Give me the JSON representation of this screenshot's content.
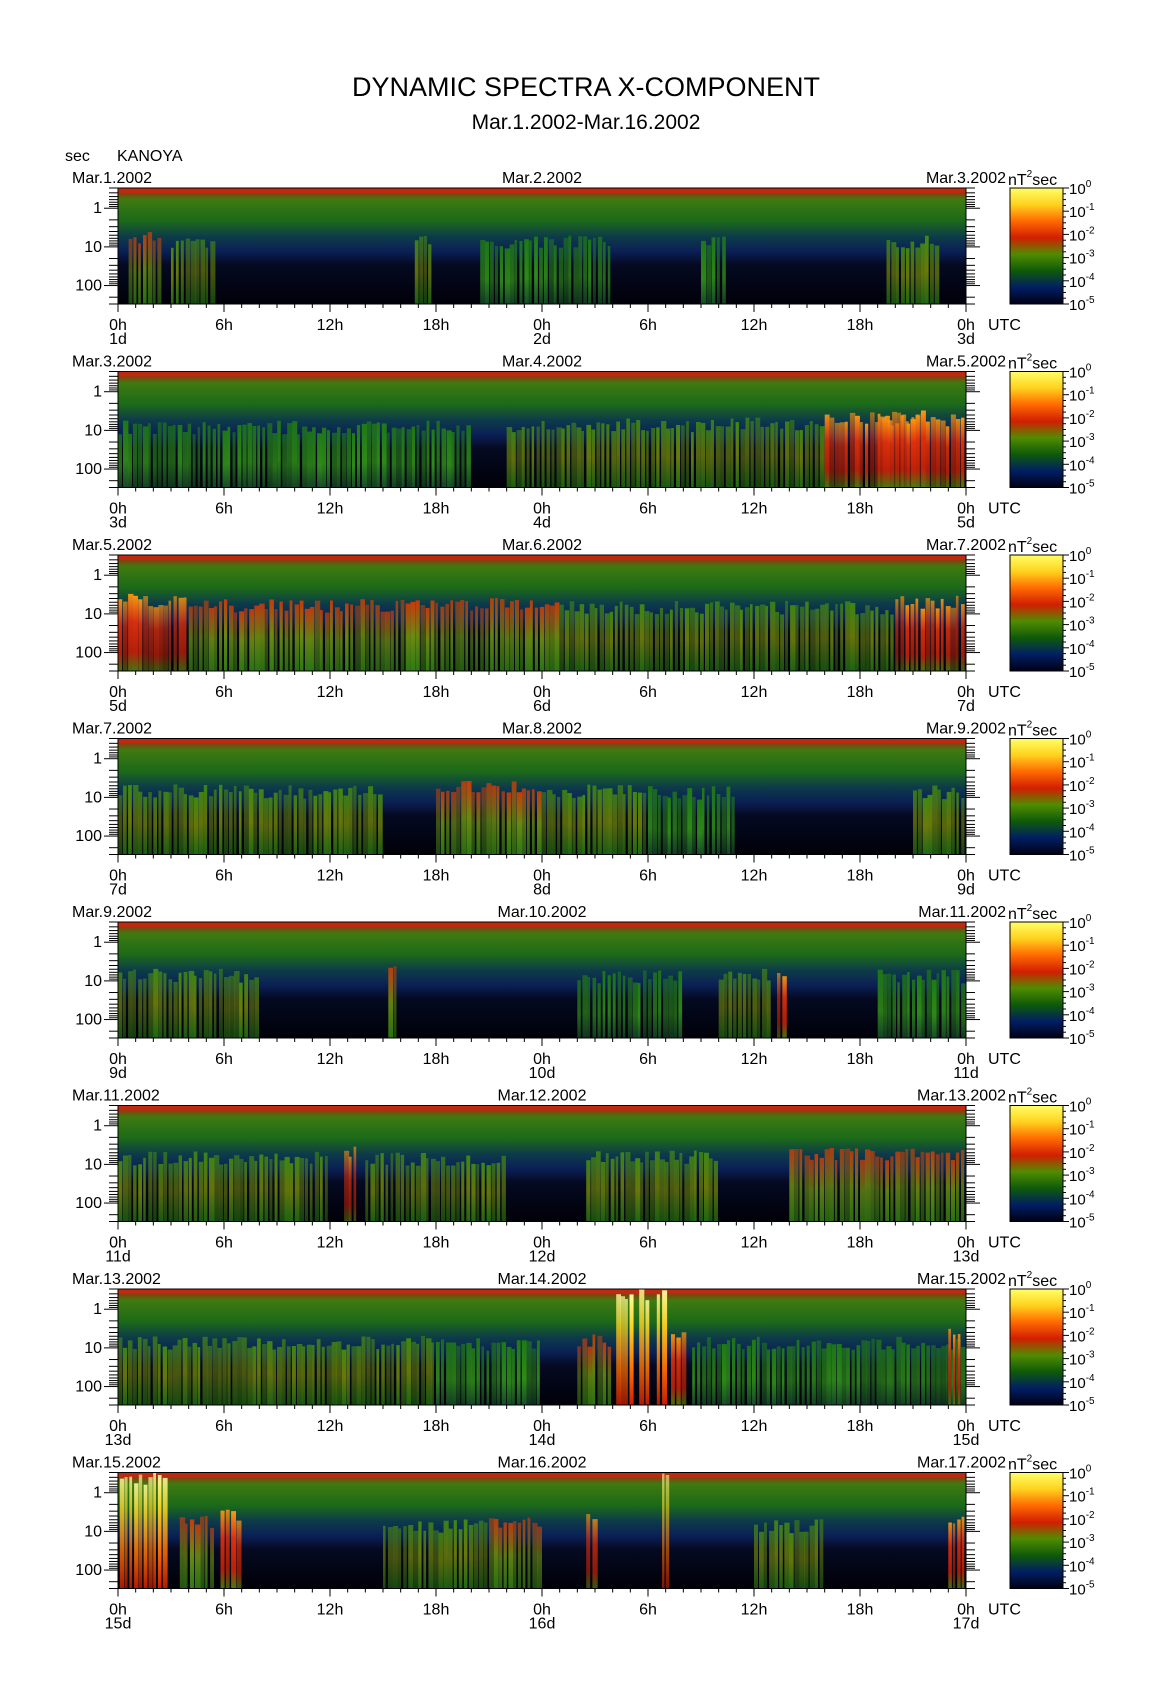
{
  "chart_data": {
    "type": "heatmap",
    "title": "DYNAMIC SPECTRA X-COMPONENT",
    "subtitle": "Mar.1.2002-Mar.16.2002",
    "y_unit_label": "sec",
    "station": "KANOYA",
    "time_unit_label": "UTC",
    "y_axis": {
      "scale": "log",
      "range_sec": [
        0.3,
        300
      ],
      "tick_values": [
        1,
        10,
        100
      ],
      "tick_labels": [
        "1",
        "10",
        "100"
      ]
    },
    "x_tick_labels": [
      "0h",
      "6h",
      "12h",
      "18h",
      "0h",
      "6h",
      "12h",
      "18h",
      "0h"
    ],
    "colorbar": {
      "unit_base": "nT",
      "unit_exp": "2",
      "unit_tail": "sec",
      "scale": "log",
      "range": [
        1e-05,
        1
      ],
      "tick_labels": [
        {
          "base": "10",
          "exp": "0"
        },
        {
          "base": "10",
          "exp": "-1"
        },
        {
          "base": "10",
          "exp": "-2"
        },
        {
          "base": "10",
          "exp": "-3"
        },
        {
          "base": "10",
          "exp": "-4"
        },
        {
          "base": "10",
          "exp": "-5"
        }
      ],
      "colors": [
        "#ffff66",
        "#ffd21e",
        "#ff6a00",
        "#d21e00",
        "#508c00",
        "#0f5a0a",
        "#001e64",
        "#000014"
      ]
    },
    "panels": [
      {
        "left_date": "Mar.1.2002",
        "mid_date": "Mar.2.2002",
        "right_date": "Mar.3.2002",
        "day_labels": [
          "1d",
          "2d",
          "3d"
        ],
        "events": [
          [
            0.6,
            2.5,
            0.5
          ],
          [
            3,
            5.5,
            0.3
          ],
          [
            16.8,
            17.8,
            0.3
          ],
          [
            20.5,
            28,
            0.25
          ],
          [
            33,
            34.5,
            0.2
          ],
          [
            43.5,
            46.5,
            0.3
          ]
        ]
      },
      {
        "left_date": "Mar.3.2002",
        "mid_date": "Mar.4.2002",
        "right_date": "Mar.5.2002",
        "day_labels": [
          "3d",
          "4d",
          "5d"
        ],
        "events": [
          [
            0,
            20,
            0.15
          ],
          [
            22,
            33,
            0.3
          ],
          [
            33,
            40,
            0.4
          ],
          [
            40,
            48,
            0.6
          ],
          [
            43,
            46,
            0.7
          ]
        ]
      },
      {
        "left_date": "Mar.5.2002",
        "mid_date": "Mar.6.2002",
        "right_date": "Mar.7.2002",
        "day_labels": [
          "5d",
          "6d",
          "7d"
        ],
        "events": [
          [
            0,
            4,
            0.7
          ],
          [
            4,
            16,
            0.45
          ],
          [
            16,
            25,
            0.55
          ],
          [
            25,
            44,
            0.35
          ],
          [
            44,
            48,
            0.65
          ]
        ]
      },
      {
        "left_date": "Mar.7.2002",
        "mid_date": "Mar.8.2002",
        "right_date": "Mar.9.2002",
        "day_labels": [
          "7d",
          "8d",
          "9d"
        ],
        "events": [
          [
            0,
            6,
            0.4
          ],
          [
            6,
            15,
            0.3
          ],
          [
            18,
            24,
            0.55
          ],
          [
            24,
            30,
            0.35
          ],
          [
            30,
            35,
            0.25
          ],
          [
            45,
            48,
            0.3
          ]
        ]
      },
      {
        "left_date": "Mar.9.2002",
        "mid_date": "Mar.10.2002",
        "right_date": "Mar.11.2002",
        "day_labels": [
          "9d",
          "10d",
          "11d"
        ],
        "events": [
          [
            0,
            8,
            0.3
          ],
          [
            15.3,
            15.9,
            0.55
          ],
          [
            26,
            32,
            0.2
          ],
          [
            34,
            37,
            0.35
          ],
          [
            37.3,
            37.9,
            0.6
          ],
          [
            43,
            48,
            0.25
          ]
        ]
      },
      {
        "left_date": "Mar.11.2002",
        "mid_date": "Mar.12.2002",
        "right_date": "Mar.13.2002",
        "day_labels": [
          "11d",
          "12d",
          "13d"
        ],
        "events": [
          [
            0,
            12,
            0.35
          ],
          [
            12.8,
            13.6,
            0.6
          ],
          [
            14,
            22,
            0.3
          ],
          [
            26.5,
            34,
            0.4
          ],
          [
            38,
            48,
            0.55
          ]
        ]
      },
      {
        "left_date": "Mar.13.2002",
        "mid_date": "Mar.14.2002",
        "right_date": "Mar.15.2002",
        "day_labels": [
          "13d",
          "14d",
          "15d"
        ],
        "events": [
          [
            0,
            18,
            0.3
          ],
          [
            18,
            24,
            0.2
          ],
          [
            26,
            28,
            0.45
          ],
          [
            28.2,
            29.2,
            0.9
          ],
          [
            29.5,
            30.2,
            0.85
          ],
          [
            30.5,
            31.1,
            0.9
          ],
          [
            31.3,
            32.2,
            0.7
          ],
          [
            32.5,
            48,
            0.25
          ],
          [
            47,
            47.8,
            0.65
          ]
        ]
      },
      {
        "left_date": "Mar.15.2002",
        "mid_date": "Mar.16.2002",
        "right_date": "Mar.17.2002",
        "day_labels": [
          "15d",
          "16d",
          "17d"
        ],
        "events": [
          [
            0.1,
            2.8,
            0.9
          ],
          [
            3.5,
            5.5,
            0.5
          ],
          [
            5.8,
            7,
            0.75
          ],
          [
            15,
            21,
            0.3
          ],
          [
            21,
            24,
            0.45
          ],
          [
            26.5,
            27.2,
            0.75
          ],
          [
            30.8,
            31.2,
            1.0
          ],
          [
            36,
            40,
            0.3
          ],
          [
            47,
            48,
            0.7
          ]
        ]
      }
    ]
  }
}
